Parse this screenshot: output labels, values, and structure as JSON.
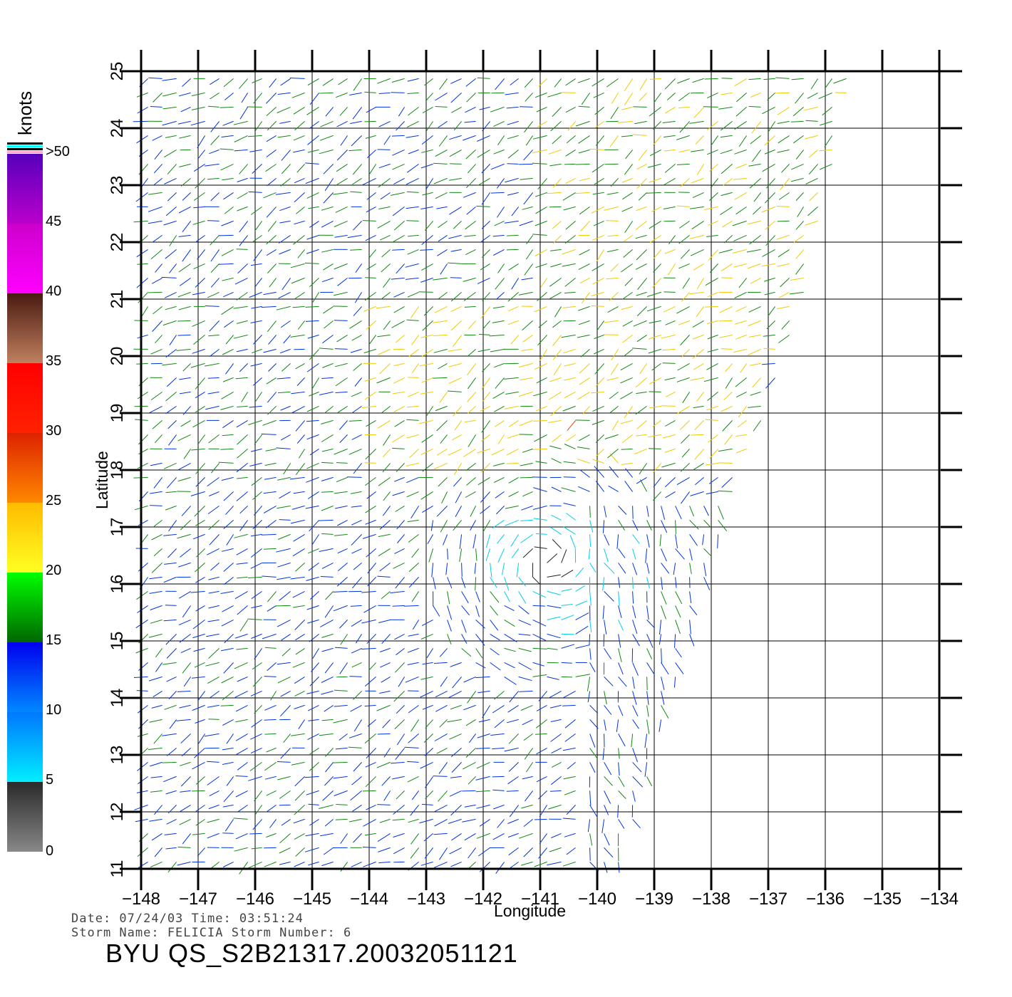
{
  "units": "knots",
  "colorbar": {
    "ticks": [
      "0",
      "5",
      "10",
      "15",
      "20",
      "25",
      "30",
      "35",
      "40",
      "45",
      ">50"
    ],
    "segments": [
      {
        "from": 0,
        "to": 5,
        "colors": [
          "#888888",
          "#2a2a2a"
        ]
      },
      {
        "from": 5,
        "to": 10,
        "colors": [
          "#00eeff",
          "#0077ff"
        ]
      },
      {
        "from": 10,
        "to": 15,
        "colors": [
          "#0088ff",
          "#0000ee"
        ]
      },
      {
        "from": 15,
        "to": 20,
        "colors": [
          "#006600",
          "#00ff00"
        ]
      },
      {
        "from": 20,
        "to": 25,
        "colors": [
          "#ffff22",
          "#ffbb00"
        ]
      },
      {
        "from": 25,
        "to": 30,
        "colors": [
          "#ff8800",
          "#dd2200"
        ]
      },
      {
        "from": 30,
        "to": 35,
        "colors": [
          "#ff2200",
          "#ff0000"
        ]
      },
      {
        "from": 35,
        "to": 40,
        "colors": [
          "#c08060",
          "#4a1a10"
        ]
      },
      {
        "from": 40,
        "to": 45,
        "colors": [
          "#ff00ff",
          "#cc00cc"
        ]
      },
      {
        "from": 45,
        "to": 50,
        "colors": [
          "#bb00cc",
          "#5500bb"
        ]
      }
    ],
    "cap_colors": [
      "#ffaacc",
      "#000000",
      "#00ffff",
      "#000000"
    ]
  },
  "axes": {
    "xlabel": "Longitude",
    "ylabel": "Latitude",
    "x_ticks": [
      "−148",
      "−147",
      "−146",
      "−145",
      "−144",
      "−143",
      "−142",
      "−141",
      "−140",
      "−139",
      "−138",
      "−137",
      "−136",
      "−135",
      "−134"
    ],
    "y_ticks": [
      "11",
      "12",
      "13",
      "14",
      "15",
      "16",
      "17",
      "18",
      "19",
      "20",
      "21",
      "22",
      "23",
      "24",
      "25"
    ],
    "xlim": [
      -148,
      -133.6
    ],
    "ylim": [
      11,
      25
    ],
    "grid": true
  },
  "swath": {
    "polygon": [
      [
        -148,
        11
      ],
      [
        -139.6,
        11
      ],
      [
        -137.8,
        17
      ],
      [
        -136.5,
        20.5
      ],
      [
        -135.5,
        25
      ],
      [
        -148,
        25
      ]
    ]
  },
  "wind_colors": {
    "calm": "#222222",
    "low": "#00ccee",
    "moderate": "#0033dd",
    "fresh": "#118811",
    "strong": "#eecc00",
    "gale": "#ee4400"
  },
  "info": {
    "line1": "Date: 07/24/03   Time: 03:51:24",
    "line2": "Storm Name: FELICIA   Storm Number: 6"
  },
  "file_title": "BYU QS_S2B21317.20032051121"
}
